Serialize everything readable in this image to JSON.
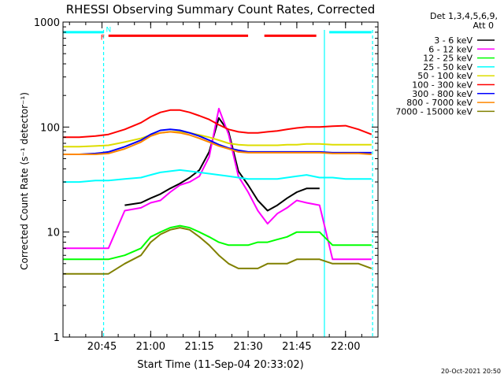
{
  "chart_data": {
    "type": "line",
    "title": "RHESSI Observing Summary Count Rates, Corrected",
    "xlabel": "Start Time (11-Sep-04 20:33:02)",
    "ylabel": "Corrected Count Rate (s⁻¹ detector⁻¹)",
    "yscale": "log",
    "ylim": [
      1,
      1000
    ],
    "xlim": [
      "20:33",
      "22:10"
    ],
    "x_ticks": [
      "20:45",
      "21:00",
      "21:15",
      "21:30",
      "21:45",
      "22:00"
    ],
    "y_ticks": [
      "1",
      "10",
      "100",
      "1000"
    ],
    "header_right": [
      "Det 1,3,4,5,6,9,",
      "Att 0"
    ],
    "footer_right": "20-Oct-2021 20:50",
    "x": [
      "20:33",
      "20:38",
      "20:43",
      "20:47",
      "20:52",
      "20:57",
      "21:00",
      "21:03",
      "21:06",
      "21:09",
      "21:12",
      "21:15",
      "21:18",
      "21:21",
      "21:24",
      "21:27",
      "21:30",
      "21:33",
      "21:36",
      "21:39",
      "21:42",
      "21:45",
      "21:48",
      "21:52",
      "21:56",
      "22:00",
      "22:04",
      "22:08"
    ],
    "series": [
      {
        "name": "3 - 6 keV",
        "color": "#000000",
        "values": [
          null,
          null,
          null,
          null,
          18,
          19,
          21,
          23,
          26,
          29,
          33,
          39,
          58,
          122,
          90,
          38,
          28,
          20,
          16,
          18,
          21,
          24,
          26,
          26,
          null,
          null,
          null,
          null
        ]
      },
      {
        "name": "6 - 12 keV",
        "color": "#ff00ff",
        "values": [
          7,
          7,
          7,
          7,
          16,
          17,
          19,
          20,
          24,
          28,
          30,
          34,
          52,
          150,
          85,
          34,
          24,
          16,
          12,
          15,
          17,
          20,
          19,
          18,
          5.5,
          5.5,
          5.5,
          5.5
        ]
      },
      {
        "name": "12 - 25 keV",
        "color": "#00ff00",
        "values": [
          5.5,
          5.5,
          5.5,
          5.5,
          6,
          7,
          9,
          10,
          11,
          11.5,
          11,
          10,
          9,
          8,
          7.5,
          7.5,
          7.5,
          8,
          8,
          8.5,
          9,
          10,
          10,
          10,
          7.5,
          7.5,
          7.5,
          7.5
        ]
      },
      {
        "name": "25 - 50 keV",
        "color": "#00ffff",
        "values": [
          30,
          30,
          31,
          31,
          32,
          33,
          35,
          37,
          38,
          39,
          38,
          37,
          36,
          35,
          34,
          33,
          32,
          32,
          32,
          32,
          33,
          34,
          35,
          33,
          33,
          32,
          32,
          32
        ]
      },
      {
        "name": "50 - 100 keV",
        "color": "#dddd00",
        "values": [
          65,
          65,
          66,
          67,
          72,
          78,
          84,
          88,
          90,
          90,
          88,
          84,
          80,
          75,
          70,
          68,
          67,
          67,
          67,
          67,
          68,
          68,
          69,
          69,
          68,
          68,
          68,
          68
        ]
      },
      {
        "name": "100 - 300 keV",
        "color": "#ff0000",
        "values": [
          80,
          80,
          82,
          85,
          95,
          110,
          125,
          138,
          145,
          145,
          138,
          128,
          118,
          105,
          95,
          90,
          88,
          88,
          90,
          92,
          95,
          98,
          100,
          100,
          102,
          103,
          95,
          85
        ]
      },
      {
        "name": "300 - 800 keV",
        "color": "#0000ff",
        "values": [
          55,
          55,
          56,
          58,
          65,
          75,
          85,
          93,
          95,
          93,
          88,
          82,
          75,
          68,
          63,
          60,
          58,
          58,
          58,
          58,
          58,
          58,
          58,
          58,
          57,
          57,
          57,
          57
        ]
      },
      {
        "name": "800 - 7000 keV",
        "color": "#ff8800",
        "values": [
          55,
          55,
          55,
          56,
          62,
          72,
          82,
          88,
          90,
          88,
          84,
          78,
          72,
          66,
          62,
          58,
          57,
          57,
          57,
          57,
          57,
          57,
          57,
          57,
          56,
          56,
          56,
          55
        ]
      },
      {
        "name": "7000 - 15000 keV",
        "color": "#808000",
        "values": [
          4,
          4,
          4,
          4,
          5,
          6,
          8,
          9.5,
          10.5,
          11,
          10.5,
          9,
          7.5,
          6,
          5,
          4.5,
          4.5,
          4.5,
          5,
          5,
          5,
          5.5,
          5.5,
          5.5,
          5,
          5,
          5,
          4.5
        ]
      }
    ],
    "state_bars": [
      {
        "label": "",
        "color": "#00ffff",
        "y_value": 800,
        "ranges": [
          [
            "20:33",
            "20:45:30"
          ],
          [
            "21:55",
            "22:08"
          ]
        ]
      },
      {
        "label": "F",
        "color": "#ff0000",
        "y_value": 740,
        "ranges": [
          [
            "20:47",
            "21:30"
          ],
          [
            "21:35",
            "21:51"
          ]
        ]
      },
      {
        "label": "N",
        "color": "#00ffff",
        "y_value": 880,
        "ranges": []
      }
    ],
    "vertical_lines": [
      {
        "x": "20:45:30",
        "color": "#00ffff",
        "style": "dashed"
      },
      {
        "x": "21:53:30",
        "color": "#00ffff",
        "style": "solid"
      },
      {
        "x": "22:08:20",
        "color": "#00ffff",
        "style": "dashed"
      }
    ]
  }
}
